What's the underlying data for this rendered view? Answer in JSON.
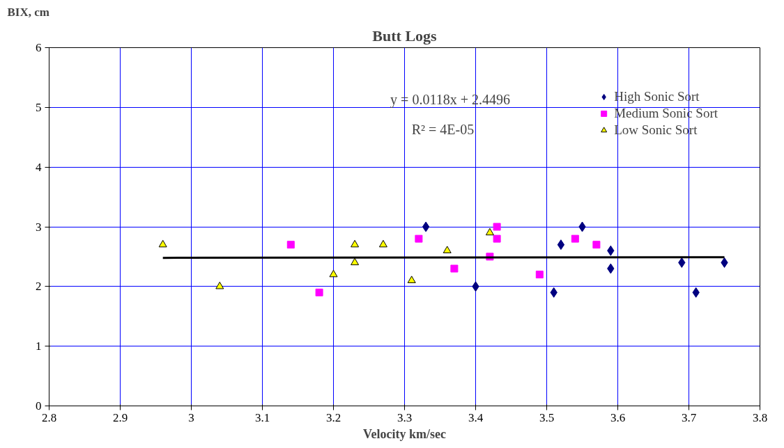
{
  "chart_data": {
    "type": "scatter",
    "title": "Butt Logs",
    "xlabel": "Velocity km/sec",
    "ylabel": "BIX, cm",
    "xlim": [
      2.8,
      3.8
    ],
    "xticks": [
      2.8,
      2.9,
      3,
      3.1,
      3.2,
      3.3,
      3.4,
      3.5,
      3.6,
      3.7,
      3.8
    ],
    "ylim": [
      0,
      6
    ],
    "yticks": [
      0,
      1,
      2,
      3,
      4,
      5,
      6
    ],
    "grid": true,
    "legend": "top right",
    "annotations": [
      "y = 0.0118x + 2.4496",
      "R² = 4E-05"
    ],
    "series": [
      {
        "name": "High Sonic Sort",
        "color": "#000080",
        "marker": "diamond",
        "x": [
          3.33,
          3.4,
          3.51,
          3.52,
          3.55,
          3.59,
          3.59,
          3.69,
          3.71,
          3.75
        ],
        "values": [
          3.0,
          2.0,
          1.9,
          2.7,
          3.0,
          2.6,
          2.3,
          2.4,
          1.9,
          2.4
        ]
      },
      {
        "name": "Medium Sonic Sort",
        "color": "#ff00ff",
        "marker": "square",
        "x": [
          3.14,
          3.18,
          3.32,
          3.37,
          3.42,
          3.43,
          3.43,
          3.49,
          3.54,
          3.57
        ],
        "values": [
          2.7,
          1.9,
          2.8,
          2.3,
          2.5,
          3.0,
          2.8,
          2.2,
          2.8,
          2.7
        ]
      },
      {
        "name": "Low Sonic Sort",
        "color": "#ffff00",
        "marker": "triangle",
        "x": [
          2.96,
          3.04,
          3.2,
          3.23,
          3.23,
          3.27,
          3.31,
          3.36,
          3.42
        ],
        "values": [
          2.7,
          2.0,
          2.2,
          2.7,
          2.4,
          2.7,
          2.1,
          2.6,
          2.9
        ]
      },
      {
        "type": "line",
        "color": "#000000",
        "x": [
          2.96,
          3.75
        ],
        "values": [
          2.48,
          2.49
        ]
      }
    ]
  }
}
